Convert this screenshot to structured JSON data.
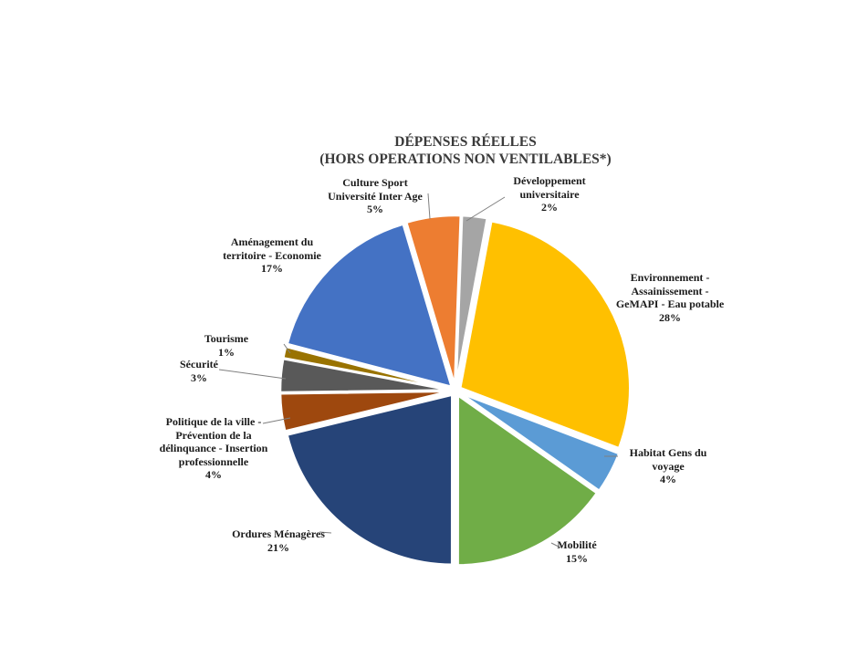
{
  "chart_data": {
    "type": "pie",
    "title": [
      "DÉPENSES RÉELLES",
      "(HORS OPERATIONS NON VENTILABLES*)"
    ],
    "start_angle_deg": 2,
    "slices": [
      {
        "label_lines": [
          "Développement",
          "universitaire"
        ],
        "pct_label": "2%",
        "value": 2.4,
        "color": "#A5A5A5"
      },
      {
        "label_lines": [
          "Environnement -",
          "Assainissement -",
          "GeMAPI - Eau potable"
        ],
        "pct_label": "28%",
        "value": 28.1,
        "color": "#FFC000"
      },
      {
        "label_lines": [
          "Habitat Gens du",
          "voyage"
        ],
        "pct_label": "4%",
        "value": 4.0,
        "color": "#5B9BD5"
      },
      {
        "label_lines": [
          "Mobilité"
        ],
        "pct_label": "15%",
        "value": 15.4,
        "color": "#70AD47"
      },
      {
        "label_lines": [
          "Ordures Ménagères"
        ],
        "pct_label": "21%",
        "value": 21.4,
        "color": "#264478"
      },
      {
        "label_lines": [
          "Politique de la ville -",
          "Prévention de la",
          "délinquance - Insertion",
          "professionnelle"
        ],
        "pct_label": "4%",
        "value": 3.6,
        "color": "#9E480E"
      },
      {
        "label_lines": [
          "Sécurité"
        ],
        "pct_label": "3%",
        "value": 3.2,
        "color": "#595959"
      },
      {
        "label_lines": [
          "Tourisme"
        ],
        "pct_label": "1%",
        "value": 1.1,
        "color": "#997300"
      },
      {
        "label_lines": [
          "Aménagement du",
          "territoire - Economie"
        ],
        "pct_label": "17%",
        "value": 16.5,
        "color": "#4472C4"
      },
      {
        "label_lines": [
          "Culture Sport",
          "Université Inter Age"
        ],
        "pct_label": "5%",
        "value": 5.2,
        "color": "#ED7D31"
      }
    ]
  }
}
